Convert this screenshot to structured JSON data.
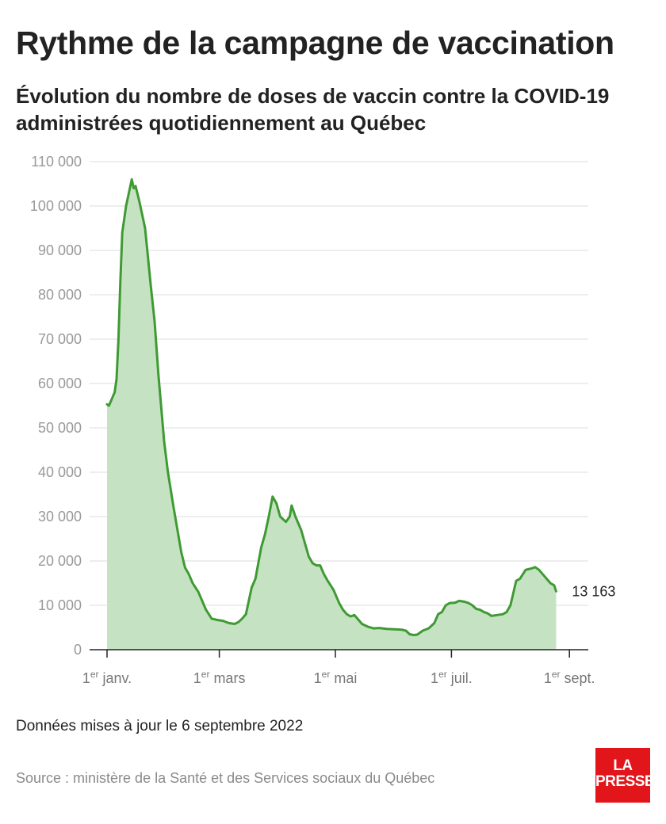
{
  "title": "Rythme de la campagne de vaccination",
  "subtitle": "Évolution du nombre de doses de vaccin contre la COVID-19 administrées quotidiennement au Québec",
  "footer": {
    "updated": "Données mises à jour le 6 septembre 2022",
    "source": "Source : ministère de la Santé et des Services sociaux du Québec"
  },
  "logo": {
    "line1": "LA",
    "line2": "PRESSE",
    "color": "#e2151b"
  },
  "chart_data": {
    "type": "area",
    "xlabel": "",
    "ylabel": "",
    "ylim": [
      0,
      110000
    ],
    "yticks": [
      0,
      10000,
      20000,
      30000,
      40000,
      50000,
      60000,
      70000,
      80000,
      90000,
      100000,
      110000
    ],
    "ytick_labels": [
      "0",
      "10 000",
      "20 000",
      "30 000",
      "40 000",
      "50 000",
      "60 000",
      "70 000",
      "80 000",
      "90 000",
      "100 000",
      "110 000"
    ],
    "xticks": [
      {
        "date": "2022-01-01",
        "sup": "er",
        "label": "janv.",
        "prefix": "1"
      },
      {
        "date": "2022-03-01",
        "sup": "er",
        "label": "mars",
        "prefix": "1"
      },
      {
        "date": "2022-05-01",
        "sup": "er",
        "label": "mai",
        "prefix": "1"
      },
      {
        "date": "2022-07-01",
        "sup": "er",
        "label": "juil.",
        "prefix": "1"
      },
      {
        "date": "2022-09-01",
        "sup": "er",
        "label": "sept.",
        "prefix": "1"
      }
    ],
    "xlim": [
      "2022-01-01",
      "2022-09-06"
    ],
    "grid": true,
    "line_color": "#3f9a34",
    "fill_color": "#c5e3c2",
    "end_label": "13 163",
    "series": [
      {
        "points": [
          [
            "2022-01-01",
            55300
          ],
          [
            "2022-01-02",
            55000
          ],
          [
            "2022-01-04",
            57000
          ],
          [
            "2022-01-05",
            58000
          ],
          [
            "2022-01-06",
            61000
          ],
          [
            "2022-01-07",
            70000
          ],
          [
            "2022-01-08",
            83000
          ],
          [
            "2022-01-09",
            94000
          ],
          [
            "2022-01-10",
            97000
          ],
          [
            "2022-01-11",
            100000
          ],
          [
            "2022-01-12",
            102000
          ],
          [
            "2022-01-13",
            104000
          ],
          [
            "2022-01-14",
            106000
          ],
          [
            "2022-01-15",
            104000
          ],
          [
            "2022-01-16",
            104500
          ],
          [
            "2022-01-18",
            101000
          ],
          [
            "2022-01-20",
            97000
          ],
          [
            "2022-01-21",
            95000
          ],
          [
            "2022-01-24",
            82000
          ],
          [
            "2022-01-26",
            74000
          ],
          [
            "2022-01-28",
            62000
          ],
          [
            "2022-01-31",
            47000
          ],
          [
            "2022-02-02",
            40000
          ],
          [
            "2022-02-05",
            32000
          ],
          [
            "2022-02-07",
            27000
          ],
          [
            "2022-02-09",
            22000
          ],
          [
            "2022-02-11",
            18500
          ],
          [
            "2022-02-13",
            17000
          ],
          [
            "2022-02-15",
            15000
          ],
          [
            "2022-02-18",
            13000
          ],
          [
            "2022-02-20",
            11000
          ],
          [
            "2022-02-22",
            9000
          ],
          [
            "2022-02-25",
            7000
          ],
          [
            "2022-02-28",
            6700
          ],
          [
            "2022-03-03",
            6500
          ],
          [
            "2022-03-06",
            6000
          ],
          [
            "2022-03-09",
            5800
          ],
          [
            "2022-03-11",
            6200
          ],
          [
            "2022-03-13",
            7000
          ],
          [
            "2022-03-15",
            8000
          ],
          [
            "2022-03-18",
            14000
          ],
          [
            "2022-03-20",
            16000
          ],
          [
            "2022-03-23",
            23000
          ],
          [
            "2022-03-25",
            26000
          ],
          [
            "2022-03-27",
            30000
          ],
          [
            "2022-03-29",
            34500
          ],
          [
            "2022-03-31",
            33000
          ],
          [
            "2022-04-02",
            30000
          ],
          [
            "2022-04-05",
            28800
          ],
          [
            "2022-04-07",
            30000
          ],
          [
            "2022-04-08",
            32500
          ],
          [
            "2022-04-10",
            30000
          ],
          [
            "2022-04-13",
            27000
          ],
          [
            "2022-04-15",
            24000
          ],
          [
            "2022-04-17",
            21000
          ],
          [
            "2022-04-19",
            19500
          ],
          [
            "2022-04-21",
            19000
          ],
          [
            "2022-04-23",
            19000
          ],
          [
            "2022-04-25",
            17000
          ],
          [
            "2022-04-27",
            15500
          ],
          [
            "2022-04-30",
            13500
          ],
          [
            "2022-05-03",
            10500
          ],
          [
            "2022-05-05",
            9000
          ],
          [
            "2022-05-07",
            8000
          ],
          [
            "2022-05-09",
            7500
          ],
          [
            "2022-05-11",
            7800
          ],
          [
            "2022-05-13",
            6800
          ],
          [
            "2022-05-15",
            5800
          ],
          [
            "2022-05-18",
            5200
          ],
          [
            "2022-05-21",
            4800
          ],
          [
            "2022-05-24",
            4900
          ],
          [
            "2022-05-28",
            4700
          ],
          [
            "2022-06-01",
            4600
          ],
          [
            "2022-06-05",
            4500
          ],
          [
            "2022-06-07",
            4300
          ],
          [
            "2022-06-09",
            3500
          ],
          [
            "2022-06-11",
            3300
          ],
          [
            "2022-06-13",
            3400
          ],
          [
            "2022-06-16",
            4300
          ],
          [
            "2022-06-19",
            4800
          ],
          [
            "2022-06-22",
            6000
          ],
          [
            "2022-06-24",
            8000
          ],
          [
            "2022-06-26",
            8500
          ],
          [
            "2022-06-28",
            10000
          ],
          [
            "2022-06-30",
            10500
          ],
          [
            "2022-07-03",
            10600
          ],
          [
            "2022-07-05",
            11000
          ],
          [
            "2022-07-08",
            10800
          ],
          [
            "2022-07-10",
            10500
          ],
          [
            "2022-07-12",
            10000
          ],
          [
            "2022-07-14",
            9200
          ],
          [
            "2022-07-16",
            9000
          ],
          [
            "2022-07-18",
            8500
          ],
          [
            "2022-07-20",
            8200
          ],
          [
            "2022-07-22",
            7600
          ],
          [
            "2022-07-25",
            7800
          ],
          [
            "2022-07-28",
            8000
          ],
          [
            "2022-07-30",
            8500
          ],
          [
            "2022-08-01",
            10000
          ],
          [
            "2022-08-04",
            15500
          ],
          [
            "2022-08-06",
            16000
          ],
          [
            "2022-08-09",
            18000
          ],
          [
            "2022-08-12",
            18300
          ],
          [
            "2022-08-14",
            18600
          ],
          [
            "2022-08-16",
            18000
          ],
          [
            "2022-08-18",
            17000
          ],
          [
            "2022-08-20",
            16000
          ],
          [
            "2022-08-22",
            15000
          ],
          [
            "2022-08-24",
            14500
          ],
          [
            "2022-08-25",
            13163
          ]
        ]
      }
    ]
  }
}
